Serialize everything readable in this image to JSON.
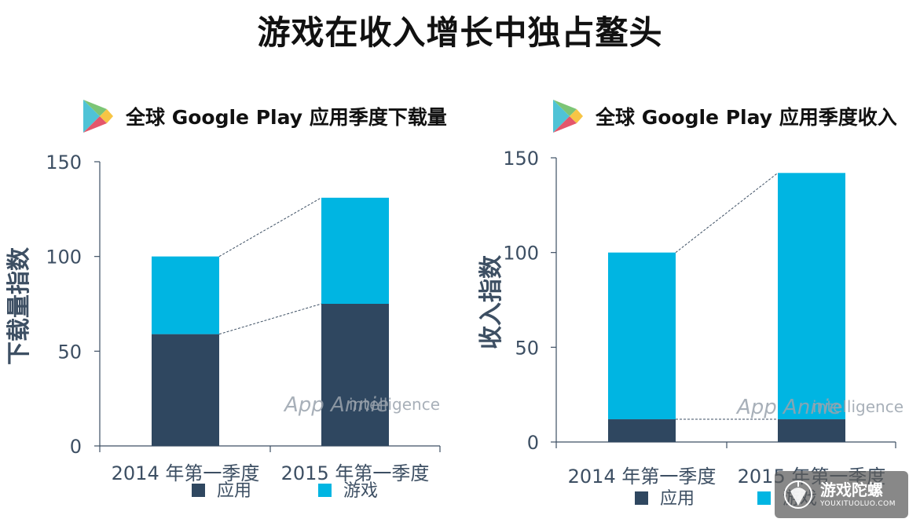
{
  "page": {
    "title": "游戏在收入增长中独占鳌头"
  },
  "colors": {
    "app": "#2f4760",
    "game": "#00b5e2",
    "axis": "#3d4f63",
    "connector": "#3d4f63"
  },
  "panels": [
    {
      "heading": "全球 Google Play 应用季度下载量",
      "icon": "google-play-icon"
    },
    {
      "heading": "全球 Google Play 应用季度收入",
      "icon": "google-play-icon"
    }
  ],
  "watermark": {
    "app_text": "App Annie",
    "intel_text": "intelligence"
  },
  "corner_badge": {
    "name": "游戏陀螺",
    "domain": "YOUXITUOLUO.COM",
    "icon": "spinning-top-icon"
  },
  "chart_data": [
    {
      "type": "bar",
      "stacked": true,
      "title": "全球 Google Play 应用季度下载量",
      "categories": [
        "2014 年第一季度",
        "2015 年第一季度"
      ],
      "series": [
        {
          "name": "应用",
          "values": [
            59,
            75
          ]
        },
        {
          "name": "游戏",
          "values": [
            41,
            56
          ]
        }
      ],
      "ylabel": "下载量指数",
      "ylim": [
        0,
        150
      ],
      "yticks": [
        0,
        50,
        100,
        150
      ],
      "grid": false,
      "legend": "bottom"
    },
    {
      "type": "bar",
      "stacked": true,
      "title": "全球 Google Play 应用季度收入",
      "categories": [
        "2014 年第一季度",
        "2015 年第一季度"
      ],
      "series": [
        {
          "name": "应用",
          "values": [
            12,
            12
          ]
        },
        {
          "name": "游戏",
          "values": [
            88,
            130
          ]
        }
      ],
      "ylabel": "收入指数",
      "ylim": [
        0,
        150
      ],
      "yticks": [
        0,
        50,
        100,
        150
      ],
      "grid": false,
      "legend": "bottom"
    }
  ]
}
